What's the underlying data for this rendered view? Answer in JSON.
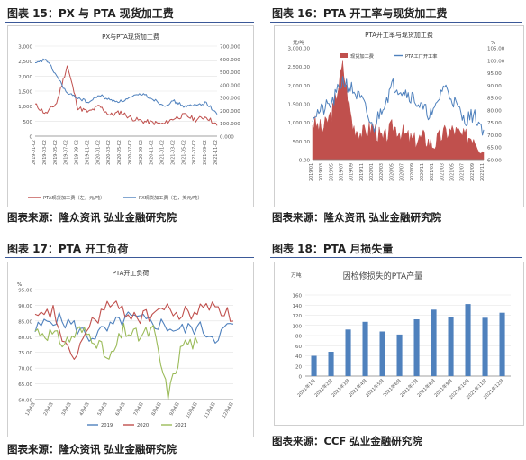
{
  "colors": {
    "red": "#c0504d",
    "blue": "#4f81bd",
    "green": "#9bbb59",
    "axis": "#888888",
    "grid": "#e2e2e2",
    "rule": "#3b5998"
  },
  "panels": [
    {
      "title": "图表 15：PX 与 PTA 现货加工费",
      "source": "图表来源：隆众资讯 弘业金融研究院"
    },
    {
      "title": "图表 16：PTA 开工率与现货加工费",
      "source": "图表来源：隆众资讯 弘业金融研究院"
    },
    {
      "title": "图表 17：PTA 开工负荷",
      "source": "图表来源：隆众资讯 弘业金融研究院"
    },
    {
      "title": "图表 18：PTA 月损失量",
      "source": "图表来源：CCF 弘业金融研究院"
    }
  ],
  "chart_data": [
    {
      "type": "line",
      "title": "PX与PTA现货加工费",
      "x": [
        "2019-01-02",
        "2019-03-02",
        "2019-05-02",
        "2019-07-02",
        "2019-09-02",
        "2019-11-02",
        "2020-01-02",
        "2020-03-02",
        "2020-05-02",
        "2020-07-02",
        "2020-09-02",
        "2020-11-02",
        "2021-01-02",
        "2021-03-02",
        "2021-05-02",
        "2021-07-02",
        "2021-09-02",
        "2021-11-02"
      ],
      "ylim_left": [
        0,
        3000
      ],
      "ylim_right": [
        0,
        700
      ],
      "yticks_left": [
        "3,000",
        "2,500",
        "2,000",
        "1,500",
        "1,000",
        "500",
        "0"
      ],
      "yticks_right": [
        "700.000",
        "600.000",
        "500.000",
        "400.000",
        "300.000",
        "200.000",
        "100.000",
        "0.000"
      ],
      "series": [
        {
          "name": "PTA现货加工费（左，元/吨）",
          "axis": "left",
          "values": [
            1050,
            750,
            1100,
            2350,
            950,
            800,
            1000,
            700,
            800,
            600,
            500,
            450,
            400,
            600,
            700,
            550,
            650,
            350
          ]
        },
        {
          "name": "PX现货加工费（右，美元/吨）",
          "axis": "right",
          "values": [
            560,
            600,
            470,
            330,
            300,
            260,
            320,
            280,
            270,
            300,
            330,
            290,
            240,
            270,
            230,
            240,
            260,
            170
          ]
        }
      ]
    },
    {
      "type": "bar",
      "title": "PTA开工率与现货加工费",
      "ylabel_left": "元/吨",
      "ylabel_right": "%",
      "x": [
        "2019/01",
        "2019/03",
        "2019/05",
        "2019/07",
        "2019/09",
        "2019/11",
        "2020/01",
        "2020/03",
        "2020/05",
        "2020/07",
        "2020/09",
        "2020/11",
        "2021/01",
        "2021/03",
        "2021/05",
        "2021/07",
        "2021/09",
        "2021/11"
      ],
      "ylim_left": [
        0,
        3000
      ],
      "ylim_right": [
        60,
        105
      ],
      "yticks_left": [
        "3,000.00",
        "2,500.00",
        "2,000.00",
        "1,500.00",
        "1,000.00",
        "500.00",
        "0.00"
      ],
      "yticks_right": [
        "105.00",
        "100.00",
        "95.00",
        "90.00",
        "85.00",
        "80.00",
        "75.00",
        "70.00",
        "65.00",
        "60.00"
      ],
      "series": [
        {
          "name": "现货加工费",
          "axis": "left",
          "kind": "area",
          "values": [
            1000,
            800,
            1300,
            2500,
            900,
            700,
            900,
            500,
            900,
            700,
            500,
            600,
            400,
            700,
            800,
            600,
            650,
            200
          ]
        },
        {
          "name": "PTA工厂开工率",
          "axis": "right",
          "kind": "line",
          "values": [
            78,
            80,
            83,
            92,
            88,
            83,
            72,
            82,
            90,
            88,
            85,
            80,
            78,
            90,
            84,
            76,
            78,
            72
          ]
        }
      ]
    },
    {
      "type": "line",
      "title": "PTA开工负荷",
      "ylabel": "%",
      "x": [
        "1月4日",
        "2月4日",
        "3月4日",
        "4月4日",
        "5月4日",
        "6月4日",
        "7月4日",
        "8月4日",
        "9月4日",
        "10月4日",
        "11月4日",
        "12月4日"
      ],
      "ylim": [
        60,
        95
      ],
      "yticks": [
        "95.00",
        "90.00",
        "85.00",
        "80.00",
        "75.00",
        "70.00",
        "65.00",
        "60.00"
      ],
      "series": [
        {
          "name": "2019",
          "values": [
            82,
            86,
            84,
            80,
            82,
            86,
            85,
            84,
            82,
            83,
            80,
            84
          ]
        },
        {
          "name": "2020",
          "values": [
            85,
            88,
            72,
            83,
            90,
            88,
            86,
            89,
            87,
            88,
            91,
            85
          ]
        },
        {
          "name": "2021",
          "values": [
            82,
            81,
            78,
            82,
            80,
            72,
            82,
            80,
            82,
            61,
            78,
            78
          ]
        }
      ]
    },
    {
      "type": "bar",
      "title": "因检修损失的PTA产量",
      "ylabel": "万吨",
      "categories": [
        "2021年1月",
        "2021年2月",
        "2021年3月",
        "2021年4月",
        "2021年5月",
        "2021年6月",
        "2021年7月",
        "2021年8月",
        "2021年9月",
        "2021年10月",
        "2021年11月",
        "2021年12月"
      ],
      "values": [
        40,
        48,
        92,
        107,
        88,
        82,
        112,
        131,
        117,
        142,
        115,
        125
      ],
      "ylim": [
        0,
        160
      ],
      "yticks": [
        "160",
        "140",
        "120",
        "100",
        "80",
        "60",
        "40",
        "20",
        "0"
      ]
    }
  ]
}
